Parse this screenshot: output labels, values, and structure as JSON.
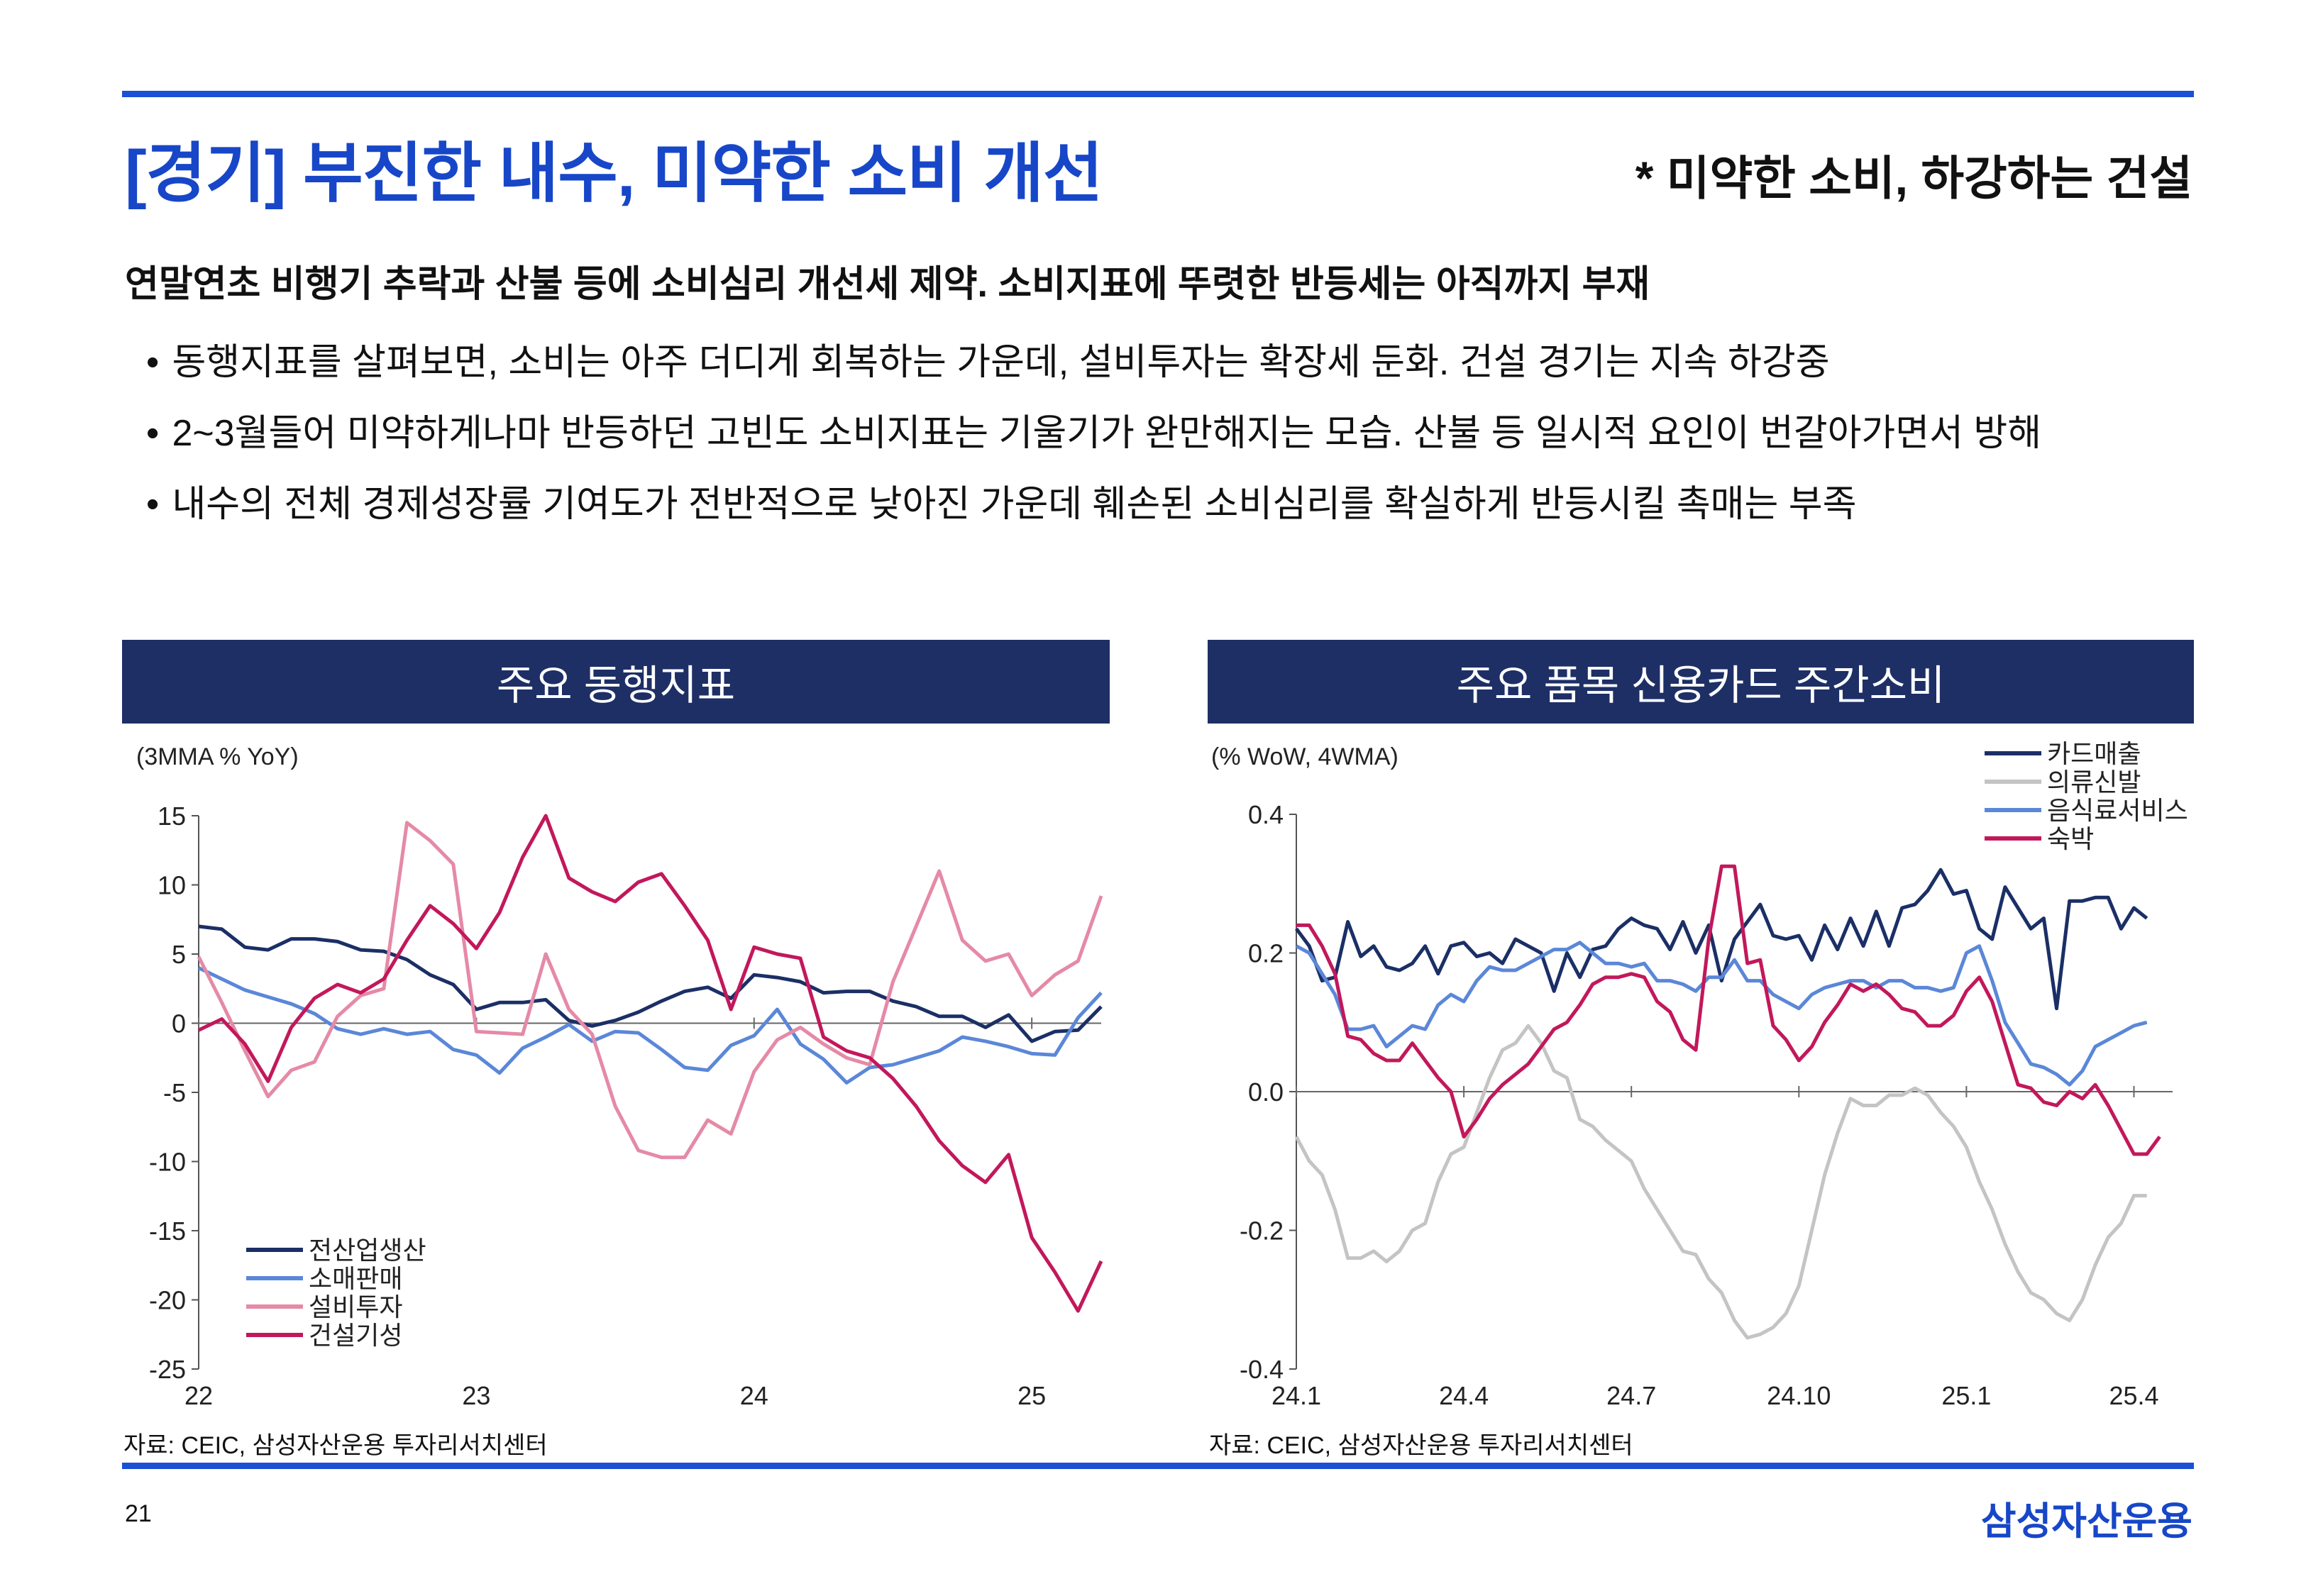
{
  "header": {
    "title": "[경기] 부진한 내수, 미약한 소비 개선",
    "subtitle": "* 미약한 소비, 하강하는 건설"
  },
  "summary": {
    "headline": "연말연초 비행기 추락과 산불 등에 소비심리 개선세 제약. 소비지표에 뚜렷한 반등세는 아직까지 부재",
    "bullets": [
      "동행지표를 살펴보면, 소비는 아주 더디게 회복하는 가운데, 설비투자는 확장세 둔화. 건설 경기는 지속 하강중",
      "2~3월들어 미약하게나마 반등하던 고빈도 소비지표는 기울기가 완만해지는 모습. 산불 등 일시적 요인이 번갈아가면서 방해",
      "내수의 전체 경제성장률 기여도가 전반적으로 낮아진 가운데 훼손된 소비심리를 확실하게 반등시킬 촉매는 부족"
    ]
  },
  "chart_data": [
    {
      "type": "line",
      "title": "주요 동행지표",
      "unit_label": "(3MMA % YoY)",
      "xlabel": "",
      "ylabel": "",
      "ylim": [
        -25,
        15
      ],
      "yticks": [
        15,
        10,
        5,
        0,
        -5,
        -10,
        -15,
        -20,
        -25
      ],
      "xlim": [
        0,
        39
      ],
      "xticks": [
        {
          "pos": 0,
          "label": "22"
        },
        {
          "pos": 12,
          "label": "23"
        },
        {
          "pos": 24,
          "label": "24"
        },
        {
          "pos": 36,
          "label": "25"
        }
      ],
      "legend": "bottom-left",
      "source": "자료: CEIC, 삼성자산운용 투자리서치센터",
      "series": [
        {
          "name": "전산업생산",
          "color": "#1b2f66",
          "values": [
            7.0,
            6.8,
            5.5,
            5.3,
            6.1,
            6.1,
            5.9,
            5.3,
            5.2,
            4.6,
            3.5,
            2.8,
            1.0,
            1.5,
            1.5,
            1.7,
            0.2,
            -0.2,
            0.2,
            0.8,
            1.6,
            2.3,
            2.6,
            1.8,
            3.5,
            3.3,
            3.0,
            2.2,
            2.3,
            2.3,
            1.6,
            1.2,
            0.5,
            0.5,
            -0.3,
            0.6,
            -1.3,
            -0.6,
            -0.5,
            1.2
          ]
        },
        {
          "name": "소매판매",
          "color": "#5b87d8",
          "values": [
            4.0,
            3.2,
            2.4,
            1.9,
            1.4,
            0.7,
            -0.4,
            -0.8,
            -0.4,
            -0.8,
            -0.6,
            -1.9,
            -2.3,
            -3.6,
            -1.8,
            -1.0,
            -0.1,
            -1.3,
            -0.6,
            -0.7,
            -1.9,
            -3.2,
            -3.4,
            -1.6,
            -0.9,
            1.0,
            -1.5,
            -2.6,
            -4.3,
            -3.2,
            -3.0,
            -2.5,
            -2.0,
            -1.0,
            -1.3,
            -1.7,
            -2.2,
            -2.3,
            0.4,
            2.2
          ]
        },
        {
          "name": "설비투자",
          "color": "#e58aa6",
          "values": [
            4.8,
            1.5,
            -2.0,
            -5.3,
            -3.4,
            -2.8,
            0.5,
            2.0,
            2.5,
            14.5,
            13.2,
            11.5,
            -0.6,
            -0.7,
            -0.8,
            5.0,
            1.0,
            -0.8,
            -6.0,
            -9.2,
            -9.7,
            -9.7,
            -7.0,
            -8.0,
            -3.5,
            -1.2,
            -0.3,
            -1.5,
            -2.5,
            -3.0,
            3.0,
            7.0,
            11.0,
            6.0,
            4.5,
            5.0,
            2.0,
            3.5,
            4.5,
            9.2
          ]
        },
        {
          "name": "건설기성",
          "color": "#c2185b",
          "values": [
            -0.5,
            0.3,
            -1.5,
            -4.2,
            -0.3,
            1.8,
            2.8,
            2.2,
            3.2,
            6.0,
            8.5,
            7.2,
            5.4,
            8.0,
            12.0,
            15.0,
            10.5,
            9.5,
            8.8,
            10.2,
            10.8,
            8.5,
            6.0,
            1.0,
            5.5,
            5.0,
            4.7,
            -1.0,
            -2.0,
            -2.5,
            -4.0,
            -6.0,
            -8.5,
            -10.3,
            -11.5,
            -9.5,
            -15.5,
            -18.0,
            -20.8,
            -17.2
          ]
        }
      ]
    },
    {
      "type": "line",
      "title": "주요 품목 신용카드 주간소비",
      "unit_label": "(% WoW, 4WMA)",
      "xlabel": "",
      "ylabel": "",
      "ylim": [
        -0.4,
        0.4
      ],
      "yticks": [
        "0.4",
        "0.2",
        "0.0",
        "-0.2",
        "-0.4"
      ],
      "xlim": [
        0,
        68
      ],
      "xticks": [
        {
          "pos": 0,
          "label": "24.1"
        },
        {
          "pos": 13,
          "label": "24.4"
        },
        {
          "pos": 26,
          "label": "24.7"
        },
        {
          "pos": 39,
          "label": "24.10"
        },
        {
          "pos": 52,
          "label": "25.1"
        },
        {
          "pos": 65,
          "label": "25.4"
        }
      ],
      "legend": "top-right",
      "source": "자료: CEIC, 삼성자산운용 투자리서치센터",
      "series": [
        {
          "name": "카드매출",
          "color": "#1b2f66",
          "values": [
            0.235,
            0.21,
            0.16,
            0.165,
            0.245,
            0.195,
            0.21,
            0.18,
            0.175,
            0.185,
            0.21,
            0.17,
            0.21,
            0.215,
            0.195,
            0.2,
            0.185,
            0.22,
            0.21,
            0.2,
            0.145,
            0.2,
            0.165,
            0.205,
            0.21,
            0.235,
            0.25,
            0.24,
            0.235,
            0.205,
            0.245,
            0.2,
            0.24,
            0.16,
            0.22,
            0.245,
            0.27,
            0.225,
            0.22,
            0.225,
            0.19,
            0.24,
            0.205,
            0.25,
            0.21,
            0.26,
            0.21,
            0.265,
            0.27,
            0.29,
            0.32,
            0.285,
            0.29,
            0.235,
            0.22,
            0.295,
            0.265,
            0.235,
            0.25,
            0.12,
            0.275,
            0.275,
            0.28,
            0.28,
            0.235,
            0.265,
            0.25
          ]
        },
        {
          "name": "의류신발",
          "color": "#c4c4c4",
          "values": [
            -0.065,
            -0.1,
            -0.12,
            -0.17,
            -0.24,
            -0.24,
            -0.23,
            -0.245,
            -0.23,
            -0.2,
            -0.19,
            -0.13,
            -0.09,
            -0.08,
            -0.03,
            0.02,
            0.06,
            0.07,
            0.095,
            0.07,
            0.03,
            0.02,
            -0.04,
            -0.05,
            -0.07,
            -0.085,
            -0.1,
            -0.14,
            -0.17,
            -0.2,
            -0.23,
            -0.235,
            -0.27,
            -0.29,
            -0.33,
            -0.355,
            -0.35,
            -0.34,
            -0.32,
            -0.28,
            -0.2,
            -0.12,
            -0.06,
            -0.01,
            -0.02,
            -0.02,
            -0.005,
            -0.005,
            0.005,
            -0.005,
            -0.03,
            -0.05,
            -0.08,
            -0.13,
            -0.17,
            -0.22,
            -0.26,
            -0.29,
            -0.3,
            -0.32,
            -0.33,
            -0.3,
            -0.25,
            -0.21,
            -0.19,
            -0.15,
            -0.15
          ]
        },
        {
          "name": "음식료서비스",
          "color": "#5b87d8",
          "values": [
            0.21,
            0.2,
            0.17,
            0.14,
            0.09,
            0.09,
            0.095,
            0.065,
            0.08,
            0.095,
            0.09,
            0.125,
            0.14,
            0.13,
            0.16,
            0.18,
            0.175,
            0.175,
            0.185,
            0.195,
            0.205,
            0.205,
            0.215,
            0.2,
            0.185,
            0.185,
            0.18,
            0.185,
            0.16,
            0.16,
            0.155,
            0.145,
            0.165,
            0.165,
            0.19,
            0.16,
            0.16,
            0.14,
            0.13,
            0.12,
            0.14,
            0.15,
            0.155,
            0.16,
            0.16,
            0.15,
            0.16,
            0.16,
            0.15,
            0.15,
            0.145,
            0.15,
            0.2,
            0.21,
            0.16,
            0.1,
            0.07,
            0.04,
            0.035,
            0.025,
            0.01,
            0.03,
            0.065,
            0.075,
            0.085,
            0.095,
            0.1
          ]
        },
        {
          "name": "숙박",
          "color": "#c2185b",
          "values": [
            0.24,
            0.24,
            0.21,
            0.17,
            0.08,
            0.075,
            0.055,
            0.045,
            0.045,
            0.07,
            0.045,
            0.02,
            0.0,
            -0.065,
            -0.04,
            -0.01,
            0.01,
            0.025,
            0.04,
            0.065,
            0.09,
            0.1,
            0.125,
            0.155,
            0.165,
            0.165,
            0.17,
            0.165,
            0.13,
            0.115,
            0.075,
            0.06,
            0.22,
            0.325,
            0.325,
            0.185,
            0.19,
            0.095,
            0.075,
            0.045,
            0.065,
            0.1,
            0.125,
            0.155,
            0.145,
            0.155,
            0.14,
            0.12,
            0.115,
            0.095,
            0.095,
            0.11,
            0.145,
            0.165,
            0.13,
            0.07,
            0.01,
            0.005,
            -0.015,
            -0.02,
            0.0,
            -0.01,
            0.01,
            -0.02,
            -0.055,
            -0.09,
            -0.09,
            -0.065
          ]
        }
      ]
    }
  ],
  "footer": {
    "page": "21",
    "brand": "삼성자산운용"
  }
}
